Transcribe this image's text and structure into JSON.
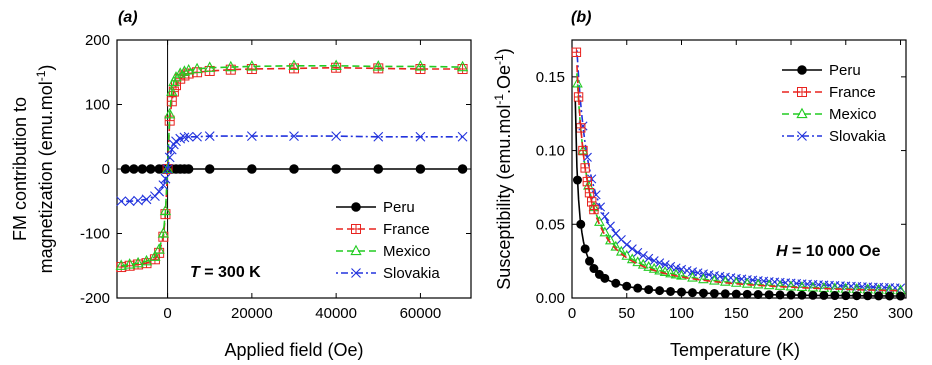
{
  "chart_data": [
    {
      "type": "line",
      "panel_label": "(a)",
      "xlabel": "Applied field (Oe)",
      "ylabel_line1": "FM contribution to",
      "ylabel_line2": "magnetization (emu.mol",
      "ylabel_sup": "-1",
      "ylabel_end": ")",
      "xlim": [
        -12000,
        72000
      ],
      "ylim": [
        -200,
        200
      ],
      "xticks": [
        0,
        20000,
        40000,
        60000
      ],
      "yticks": [
        -200,
        -100,
        0,
        100,
        200
      ],
      "annotation_italic": "T",
      "annotation_rest": " = 300 K",
      "legend_position": "bottom-right",
      "series": [
        {
          "name": "Peru",
          "color": "#000000",
          "marker": "filled-circle",
          "dash": "solid",
          "x": [
            -10000,
            -8000,
            -6000,
            -4000,
            -2000,
            -1000,
            0,
            1000,
            2000,
            3000,
            4000,
            5000,
            10000,
            20000,
            30000,
            40000,
            50000,
            60000,
            70000
          ],
          "values": [
            0,
            0,
            0,
            0,
            0,
            0,
            0,
            0,
            0,
            0,
            0,
            0,
            0,
            0,
            0,
            0,
            0,
            0,
            0
          ]
        },
        {
          "name": "France",
          "color": "#e8231f",
          "marker": "square-plus",
          "dash": "dash",
          "x": [
            -11000,
            -9000,
            -7000,
            -5000,
            -3000,
            -2000,
            -1000,
            -500,
            0,
            500,
            1000,
            1500,
            2000,
            3000,
            4000,
            5000,
            7000,
            10000,
            15000,
            20000,
            30000,
            40000,
            50000,
            60000,
            70000
          ],
          "values": [
            -152,
            -150,
            -148,
            -146,
            -140,
            -130,
            -105,
            -70,
            0,
            75,
            105,
            120,
            130,
            140,
            145,
            148,
            150,
            152,
            154,
            155,
            156,
            157,
            156,
            155,
            155
          ]
        },
        {
          "name": "Mexico",
          "color": "#22cc22",
          "marker": "open-triangle",
          "dash": "dash",
          "x": [
            -11000,
            -9000,
            -7000,
            -5000,
            -3000,
            -2000,
            -1000,
            -500,
            0,
            500,
            1000,
            1500,
            2000,
            3000,
            4000,
            5000,
            7000,
            10000,
            15000,
            20000,
            30000,
            40000,
            50000,
            60000,
            70000
          ],
          "values": [
            -150,
            -148,
            -146,
            -143,
            -136,
            -125,
            -100,
            -65,
            0,
            85,
            120,
            135,
            142,
            148,
            151,
            153,
            155,
            157,
            158,
            159,
            160,
            160,
            159,
            159,
            158
          ]
        },
        {
          "name": "Slovakia",
          "color": "#2233dd",
          "marker": "x-cross",
          "dash": "dot-dash",
          "x": [
            -11000,
            -9000,
            -7000,
            -5000,
            -3000,
            -2000,
            -1000,
            -500,
            0,
            500,
            1000,
            1500,
            2000,
            3000,
            4000,
            5000,
            7000,
            10000,
            20000,
            30000,
            40000,
            50000,
            60000,
            70000
          ],
          "values": [
            -50,
            -50,
            -49,
            -47,
            -42,
            -35,
            -25,
            -15,
            0,
            18,
            30,
            38,
            43,
            47,
            49,
            50,
            50,
            51,
            51,
            51,
            51,
            50,
            50,
            50
          ]
        }
      ]
    },
    {
      "type": "line",
      "panel_label": "(b)",
      "xlabel": "Temperature (K)",
      "ylabel_line1": "Susceptibility (emu.mol",
      "ylabel_sup1": "-1",
      "ylabel_mid": ".Oe",
      "ylabel_sup2": "-1",
      "ylabel_end": ")",
      "xlim": [
        0,
        305
      ],
      "ylim": [
        0,
        0.175
      ],
      "xticks": [
        0,
        50,
        100,
        150,
        200,
        250,
        300
      ],
      "yticks": [
        0.0,
        0.05,
        0.1,
        0.15
      ],
      "ytick_labels": [
        "0.00",
        "0.05",
        "0.10",
        "0.15"
      ],
      "annotation_italic": "H",
      "annotation_rest": " = 10 000 Oe",
      "legend_position": "top-right",
      "series": [
        {
          "name": "Peru",
          "color": "#000000",
          "marker": "filled-circle",
          "dash": "solid",
          "curie_C": 0.4,
          "curie_theta": 0,
          "x_markers": [
            2,
            5,
            8,
            12,
            16,
            20,
            25,
            30,
            40,
            50,
            60,
            70,
            80,
            90,
            100,
            110,
            120,
            130,
            140,
            150,
            160,
            170,
            180,
            190,
            200,
            210,
            220,
            230,
            240,
            250,
            260,
            270,
            280,
            290,
            300
          ]
        },
        {
          "name": "France",
          "color": "#e8231f",
          "marker": "square-plus",
          "dash": "dash",
          "curie_C": 1.5,
          "curie_theta": 5,
          "x_markers": [
            4,
            6,
            8,
            10,
            12,
            14,
            16,
            18,
            20
          ]
        },
        {
          "name": "Mexico",
          "color": "#22cc22",
          "marker": "open-triangle",
          "dash": "dash",
          "curie_C": 1.6,
          "curie_theta": 6,
          "x_markers": [
            5,
            10,
            15,
            20,
            25,
            30,
            35,
            40,
            45,
            50,
            55,
            60,
            65,
            70,
            75,
            80,
            85,
            90,
            95,
            100,
            110,
            120,
            130,
            140,
            150,
            160,
            170,
            180,
            190,
            200,
            210,
            220,
            230,
            240,
            250,
            260,
            270,
            280,
            290,
            300
          ]
        },
        {
          "name": "Slovakia",
          "color": "#2233dd",
          "marker": "x-cross",
          "dash": "dot-dash",
          "curie_C": 2.1,
          "curie_theta": 8,
          "x_markers": [
            10,
            14,
            18,
            22,
            26,
            30,
            35,
            40,
            45,
            50,
            55,
            60,
            65,
            70,
            75,
            80,
            85,
            90,
            95,
            100,
            105,
            110,
            115,
            120,
            125,
            130,
            135,
            140,
            145,
            150,
            155,
            160,
            165,
            170,
            175,
            180,
            185,
            190,
            195,
            200,
            205,
            210,
            215,
            220,
            225,
            230,
            235,
            240,
            245,
            250,
            255,
            260,
            265,
            270,
            275,
            280,
            285,
            290,
            295,
            300
          ]
        }
      ]
    }
  ]
}
